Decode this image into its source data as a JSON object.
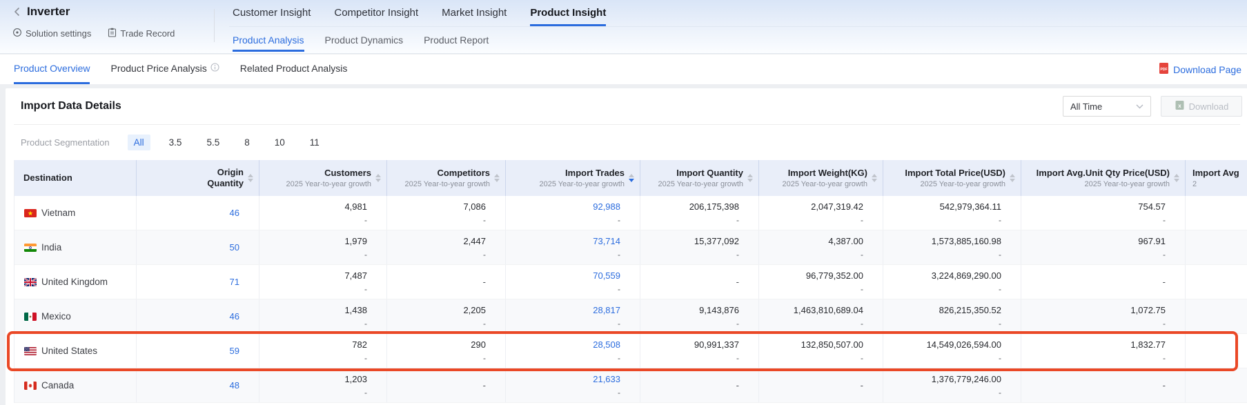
{
  "colors": {
    "accent_blue": "#2b6cde",
    "highlight_red": "#ea4826",
    "table_header_bg": "#e9eef9"
  },
  "header": {
    "back_icon": "chevron-left",
    "title": "Inverter",
    "solution_settings": "Solution settings",
    "trade_record": "Trade Record",
    "main_tabs": [
      {
        "label": "Customer Insight",
        "active": false
      },
      {
        "label": "Competitor Insight",
        "active": false
      },
      {
        "label": "Market Insight",
        "active": false
      },
      {
        "label": "Product Insight",
        "active": true
      }
    ],
    "sub_tabs": [
      {
        "label": "Product Analysis",
        "active": true
      },
      {
        "label": "Product Dynamics",
        "active": false
      },
      {
        "label": "Product Report",
        "active": false
      }
    ]
  },
  "toolbar": {
    "view_tabs": [
      {
        "label": "Product Overview",
        "active": true
      },
      {
        "label": "Product Price Analysis",
        "active": false,
        "info": true
      },
      {
        "label": "Related Product Analysis",
        "active": false
      }
    ],
    "download_page": "Download Page",
    "download_page_icon": "pdf-file-icon"
  },
  "card": {
    "title": "Import Data Details",
    "time_filter": {
      "value": "All Time",
      "icon": "chevron-down-icon"
    },
    "download_label": "Download",
    "download_icon": "excel-file-icon",
    "download_disabled": true,
    "segmentation": {
      "label": "Product Segmentation",
      "options": [
        {
          "label": "All",
          "active": true
        },
        {
          "label": "3.5",
          "active": false
        },
        {
          "label": "5.5",
          "active": false
        },
        {
          "label": "8",
          "active": false
        },
        {
          "label": "10",
          "active": false
        },
        {
          "label": "11",
          "active": false
        }
      ]
    }
  },
  "table": {
    "sort": {
      "column": "Import Trades",
      "direction": "desc"
    },
    "columns": [
      {
        "key": "destination",
        "title": "Destination",
        "sortable": false
      },
      {
        "key": "origin_qty",
        "title": "Origin",
        "title2": "Quantity",
        "sortable": true
      },
      {
        "key": "customers",
        "title": "Customers",
        "subtitle": "2025 Year-to-year growth",
        "sortable": true
      },
      {
        "key": "competitors",
        "title": "Competitors",
        "subtitle": "2025 Year-to-year growth",
        "sortable": true
      },
      {
        "key": "trades",
        "title": "Import Trades",
        "subtitle": "2025 Year-to-year growth",
        "sortable": true,
        "sorted": "desc"
      },
      {
        "key": "quantity",
        "title": "Import Quantity",
        "subtitle": "2025 Year-to-year growth",
        "sortable": true
      },
      {
        "key": "weight",
        "title": "Import Weight(KG)",
        "subtitle": "2025 Year-to-year growth",
        "sortable": true
      },
      {
        "key": "total_price",
        "title": "Import Total Price(USD)",
        "subtitle": "2025 Year-to-year growth",
        "sortable": true
      },
      {
        "key": "avg_price",
        "title": "Import Avg.Unit Qty Price(USD)",
        "subtitle": "2025 Year-to-year growth",
        "sortable": true
      },
      {
        "key": "truncated",
        "title": "Import Avg",
        "subtitle": "2",
        "sortable": false
      }
    ],
    "rows": [
      {
        "country": "Vietnam",
        "flag": "vn",
        "origin_qty": "46",
        "highlighted": false,
        "cells": {
          "customers": {
            "v": "4,981",
            "g": "-"
          },
          "competitors": {
            "v": "7,086",
            "g": "-"
          },
          "trades": {
            "v": "92,988",
            "g": "-"
          },
          "quantity": {
            "v": "206,175,398",
            "g": "-"
          },
          "weight": {
            "v": "2,047,319.42",
            "g": "-"
          },
          "total_price": {
            "v": "542,979,364.11",
            "g": "-"
          },
          "avg_price": {
            "v": "754.57",
            "g": "-"
          }
        }
      },
      {
        "country": "India",
        "flag": "in",
        "origin_qty": "50",
        "highlighted": false,
        "cells": {
          "customers": {
            "v": "1,979",
            "g": "-"
          },
          "competitors": {
            "v": "2,447",
            "g": "-"
          },
          "trades": {
            "v": "73,714",
            "g": "-"
          },
          "quantity": {
            "v": "15,377,092",
            "g": "-"
          },
          "weight": {
            "v": "4,387.00",
            "g": "-"
          },
          "total_price": {
            "v": "1,573,885,160.98",
            "g": "-"
          },
          "avg_price": {
            "v": "967.91",
            "g": "-"
          }
        }
      },
      {
        "country": "United Kingdom",
        "flag": "gb",
        "origin_qty": "71",
        "highlighted": false,
        "cells": {
          "customers": {
            "v": "7,487",
            "g": "-"
          },
          "competitors": {
            "v": "-",
            "g": null
          },
          "trades": {
            "v": "70,559",
            "g": "-"
          },
          "quantity": {
            "v": "-",
            "g": null
          },
          "weight": {
            "v": "96,779,352.00",
            "g": "-"
          },
          "total_price": {
            "v": "3,224,869,290.00",
            "g": "-"
          },
          "avg_price": {
            "v": "-",
            "g": null
          }
        }
      },
      {
        "country": "Mexico",
        "flag": "mx",
        "origin_qty": "46",
        "highlighted": false,
        "cells": {
          "customers": {
            "v": "1,438",
            "g": "-"
          },
          "competitors": {
            "v": "2,205",
            "g": "-"
          },
          "trades": {
            "v": "28,817",
            "g": "-"
          },
          "quantity": {
            "v": "9,143,876",
            "g": "-"
          },
          "weight": {
            "v": "1,463,810,689.04",
            "g": "-"
          },
          "total_price": {
            "v": "826,215,350.52",
            "g": "-"
          },
          "avg_price": {
            "v": "1,072.75",
            "g": "-"
          }
        }
      },
      {
        "country": "United States",
        "flag": "us",
        "origin_qty": "59",
        "highlighted": true,
        "cells": {
          "customers": {
            "v": "782",
            "g": "-"
          },
          "competitors": {
            "v": "290",
            "g": "-"
          },
          "trades": {
            "v": "28,508",
            "g": "-"
          },
          "quantity": {
            "v": "90,991,337",
            "g": "-"
          },
          "weight": {
            "v": "132,850,507.00",
            "g": "-"
          },
          "total_price": {
            "v": "14,549,026,594.00",
            "g": "-"
          },
          "avg_price": {
            "v": "1,832.77",
            "g": "-"
          }
        }
      },
      {
        "country": "Canada",
        "flag": "ca",
        "origin_qty": "48",
        "highlighted": false,
        "cells": {
          "customers": {
            "v": "1,203",
            "g": "-"
          },
          "competitors": {
            "v": "-",
            "g": null
          },
          "trades": {
            "v": "21,633",
            "g": "-"
          },
          "quantity": {
            "v": "-",
            "g": null
          },
          "weight": {
            "v": "-",
            "g": null
          },
          "total_price": {
            "v": "1,376,779,246.00",
            "g": "-"
          },
          "avg_price": {
            "v": "-",
            "g": null
          }
        }
      }
    ]
  }
}
